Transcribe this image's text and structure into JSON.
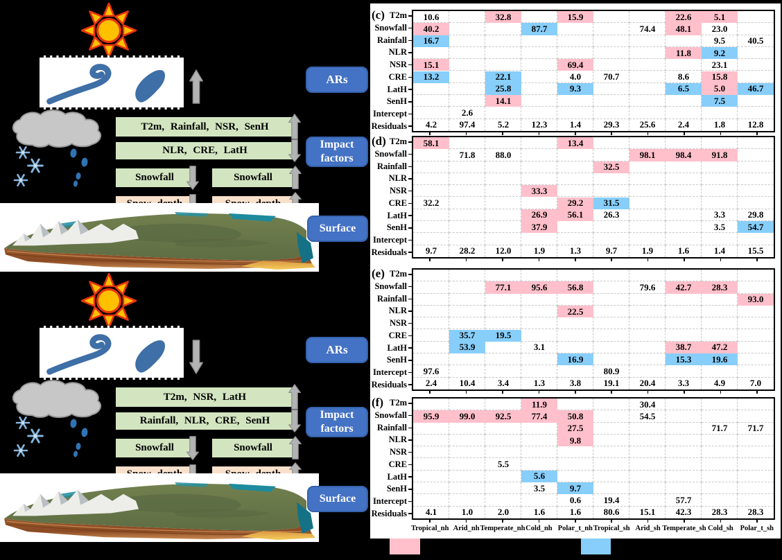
{
  "figure": {
    "background": "#000000",
    "panel_bg": "#ffffff",
    "accent_blue_tag": "#4472C4",
    "green_box_color": "#D2E5C0",
    "peach_box_color": "#F9E0CB",
    "ar_shape_color": "#3E6FA6"
  },
  "legend": {
    "positive_color": "#FFC0CB",
    "negative_color": "#87CEFA"
  },
  "diagrams": {
    "a": {
      "ars_label": "ARs",
      "ars_flow_arrow": "up",
      "impact_factors_label": "Impact factors",
      "factor_box_up_label": "T2m, Rainfall, NSR, SenH",
      "factor_box_down_label": "NLR, CRE, LatH",
      "snowfall_decrease_label": "Snowfall",
      "snowfall_increase_label": "Snowfall",
      "snow_depth_decrease_label": "Snow depth",
      "snow_depth_increase_label": "Snow depth",
      "surface_label": "Surface"
    },
    "b": {
      "ars_label": "ARs",
      "ars_flow_arrow": "down",
      "impact_factors_label": "Impact factors",
      "factor_box_up_label": "T2m, NSR, LatH",
      "factor_box_down_label": "Rainfall, NLR, CRE, SenH",
      "snowfall_decrease_label": "Snowfall",
      "snowfall_increase_label": "Snowfall",
      "snow_depth_decrease_label": "Snow depth",
      "snow_depth_increase_label": "Snow depth",
      "surface_label": "Surface"
    }
  },
  "chart_data": {
    "type": "heatmap",
    "rows": [
      "T2m",
      "Snowfall",
      "Rainfall",
      "NLR",
      "NSR",
      "CRE",
      "LatH",
      "SenH",
      "Intercept",
      "Residuals"
    ],
    "columns": [
      "Tropical_nh",
      "Arid_nh",
      "Temperate_nh",
      "Cold_nh",
      "Polar_t_nh",
      "Tropical_sh",
      "Arid_sh",
      "Temperate_sh",
      "Cold_sh",
      "Polar_t_sh"
    ],
    "highlight_legend": {
      "pink": "#FFC0CB",
      "blue": "#87CEFA"
    },
    "panels": [
      {
        "label": "(c)",
        "cells": [
          [
            0,
            0,
            "10.6",
            "none"
          ],
          [
            0,
            2,
            "32.8",
            "pink"
          ],
          [
            0,
            4,
            "15.9",
            "pink"
          ],
          [
            0,
            7,
            "22.6",
            "pink"
          ],
          [
            0,
            8,
            "5.1",
            "pink"
          ],
          [
            1,
            0,
            "40.2",
            "pink"
          ],
          [
            1,
            3,
            "87.7",
            "blue"
          ],
          [
            1,
            6,
            "74.4",
            "none"
          ],
          [
            1,
            7,
            "48.1",
            "pink"
          ],
          [
            1,
            8,
            "23.0",
            "none"
          ],
          [
            2,
            0,
            "16.7",
            "blue"
          ],
          [
            2,
            8,
            "9.5",
            "none"
          ],
          [
            2,
            9,
            "40.5",
            "none"
          ],
          [
            3,
            7,
            "11.8",
            "pink"
          ],
          [
            3,
            8,
            "9.2",
            "blue"
          ],
          [
            4,
            0,
            "15.1",
            "pink"
          ],
          [
            4,
            4,
            "69.4",
            "pink"
          ],
          [
            4,
            8,
            "23.1",
            "none"
          ],
          [
            5,
            0,
            "13.2",
            "blue"
          ],
          [
            5,
            2,
            "22.1",
            "blue"
          ],
          [
            5,
            4,
            "4.0",
            "none"
          ],
          [
            5,
            5,
            "70.7",
            "none"
          ],
          [
            5,
            7,
            "8.6",
            "none"
          ],
          [
            5,
            8,
            "15.8",
            "pink"
          ],
          [
            6,
            2,
            "25.8",
            "blue"
          ],
          [
            6,
            4,
            "9.3",
            "blue"
          ],
          [
            6,
            7,
            "6.5",
            "blue"
          ],
          [
            6,
            8,
            "5.0",
            "pink"
          ],
          [
            6,
            9,
            "46.7",
            "blue"
          ],
          [
            7,
            2,
            "14.1",
            "pink"
          ],
          [
            7,
            8,
            "7.5",
            "blue"
          ],
          [
            8,
            1,
            "2.6",
            "none"
          ],
          [
            9,
            0,
            "4.2",
            "none"
          ],
          [
            9,
            1,
            "97.4",
            "none"
          ],
          [
            9,
            2,
            "5.2",
            "none"
          ],
          [
            9,
            3,
            "12.3",
            "none"
          ],
          [
            9,
            4,
            "1.4",
            "none"
          ],
          [
            9,
            5,
            "29.3",
            "none"
          ],
          [
            9,
            6,
            "25.6",
            "none"
          ],
          [
            9,
            7,
            "2.4",
            "none"
          ],
          [
            9,
            8,
            "1.8",
            "none"
          ],
          [
            9,
            9,
            "12.8",
            "none"
          ]
        ]
      },
      {
        "label": "(d)",
        "cells": [
          [
            0,
            0,
            "58.1",
            "pink"
          ],
          [
            0,
            4,
            "13.4",
            "pink"
          ],
          [
            1,
            1,
            "71.8",
            "none"
          ],
          [
            1,
            2,
            "88.0",
            "none"
          ],
          [
            1,
            6,
            "98.1",
            "pink"
          ],
          [
            1,
            7,
            "98.4",
            "pink"
          ],
          [
            1,
            8,
            "91.8",
            "pink"
          ],
          [
            2,
            5,
            "32.5",
            "pink"
          ],
          [
            4,
            3,
            "33.3",
            "pink"
          ],
          [
            5,
            0,
            "32.2",
            "none"
          ],
          [
            5,
            4,
            "29.2",
            "pink"
          ],
          [
            5,
            5,
            "31.5",
            "blue"
          ],
          [
            6,
            3,
            "26.9",
            "pink"
          ],
          [
            6,
            4,
            "56.1",
            "pink"
          ],
          [
            6,
            5,
            "26.3",
            "none"
          ],
          [
            6,
            8,
            "3.3",
            "none"
          ],
          [
            6,
            9,
            "29.8",
            "none"
          ],
          [
            7,
            3,
            "37.9",
            "pink"
          ],
          [
            7,
            8,
            "3.5",
            "none"
          ],
          [
            7,
            9,
            "54.7",
            "blue"
          ],
          [
            9,
            0,
            "9.7",
            "none"
          ],
          [
            9,
            1,
            "28.2",
            "none"
          ],
          [
            9,
            2,
            "12.0",
            "none"
          ],
          [
            9,
            3,
            "1.9",
            "none"
          ],
          [
            9,
            4,
            "1.3",
            "none"
          ],
          [
            9,
            5,
            "9.7",
            "none"
          ],
          [
            9,
            6,
            "1.9",
            "none"
          ],
          [
            9,
            7,
            "1.6",
            "none"
          ],
          [
            9,
            8,
            "1.4",
            "none"
          ],
          [
            9,
            9,
            "15.5",
            "none"
          ]
        ]
      },
      {
        "label": "(e)",
        "cells": [
          [
            1,
            2,
            "77.1",
            "pink"
          ],
          [
            1,
            3,
            "95.6",
            "pink"
          ],
          [
            1,
            4,
            "56.8",
            "pink"
          ],
          [
            1,
            6,
            "79.6",
            "none"
          ],
          [
            1,
            7,
            "42.7",
            "pink"
          ],
          [
            1,
            8,
            "28.3",
            "pink"
          ],
          [
            2,
            9,
            "93.0",
            "pink"
          ],
          [
            3,
            4,
            "22.5",
            "pink"
          ],
          [
            5,
            1,
            "35.7",
            "blue"
          ],
          [
            5,
            2,
            "19.5",
            "blue"
          ],
          [
            6,
            1,
            "53.9",
            "blue"
          ],
          [
            6,
            3,
            "3.1",
            "none"
          ],
          [
            6,
            7,
            "38.7",
            "pink"
          ],
          [
            6,
            8,
            "47.2",
            "pink"
          ],
          [
            7,
            4,
            "16.9",
            "blue"
          ],
          [
            7,
            7,
            "15.3",
            "blue"
          ],
          [
            7,
            8,
            "19.6",
            "blue"
          ],
          [
            8,
            0,
            "97.6",
            "none"
          ],
          [
            8,
            5,
            "80.9",
            "none"
          ],
          [
            9,
            0,
            "2.4",
            "none"
          ],
          [
            9,
            1,
            "10.4",
            "none"
          ],
          [
            9,
            2,
            "3.4",
            "none"
          ],
          [
            9,
            3,
            "1.3",
            "none"
          ],
          [
            9,
            4,
            "3.8",
            "none"
          ],
          [
            9,
            5,
            "19.1",
            "none"
          ],
          [
            9,
            6,
            "20.4",
            "none"
          ],
          [
            9,
            7,
            "3.3",
            "none"
          ],
          [
            9,
            8,
            "4.9",
            "none"
          ],
          [
            9,
            9,
            "7.0",
            "none"
          ]
        ]
      },
      {
        "label": "(f)",
        "cells": [
          [
            0,
            3,
            "11.9",
            "pink"
          ],
          [
            0,
            6,
            "30.4",
            "none"
          ],
          [
            1,
            0,
            "95.9",
            "pink"
          ],
          [
            1,
            1,
            "99.0",
            "pink"
          ],
          [
            1,
            2,
            "92.5",
            "pink"
          ],
          [
            1,
            3,
            "77.4",
            "pink"
          ],
          [
            1,
            4,
            "50.8",
            "pink"
          ],
          [
            1,
            6,
            "54.5",
            "none"
          ],
          [
            2,
            4,
            "27.5",
            "pink"
          ],
          [
            2,
            8,
            "71.7",
            "none"
          ],
          [
            2,
            9,
            "71.7",
            "none"
          ],
          [
            3,
            4,
            "9.8",
            "pink"
          ],
          [
            5,
            2,
            "5.5",
            "none"
          ],
          [
            6,
            3,
            "5.6",
            "blue"
          ],
          [
            7,
            3,
            "3.5",
            "none"
          ],
          [
            7,
            4,
            "9.7",
            "blue"
          ],
          [
            8,
            4,
            "0.6",
            "none"
          ],
          [
            8,
            5,
            "19.4",
            "none"
          ],
          [
            8,
            7,
            "57.7",
            "none"
          ],
          [
            9,
            0,
            "4.1",
            "none"
          ],
          [
            9,
            1,
            "1.0",
            "none"
          ],
          [
            9,
            2,
            "2.0",
            "none"
          ],
          [
            9,
            3,
            "1.6",
            "none"
          ],
          [
            9,
            4,
            "1.6",
            "none"
          ],
          [
            9,
            5,
            "80.6",
            "none"
          ],
          [
            9,
            6,
            "15.1",
            "none"
          ],
          [
            9,
            7,
            "42.3",
            "none"
          ],
          [
            9,
            8,
            "28.3",
            "none"
          ],
          [
            9,
            9,
            "28.3",
            "none"
          ]
        ]
      }
    ]
  }
}
